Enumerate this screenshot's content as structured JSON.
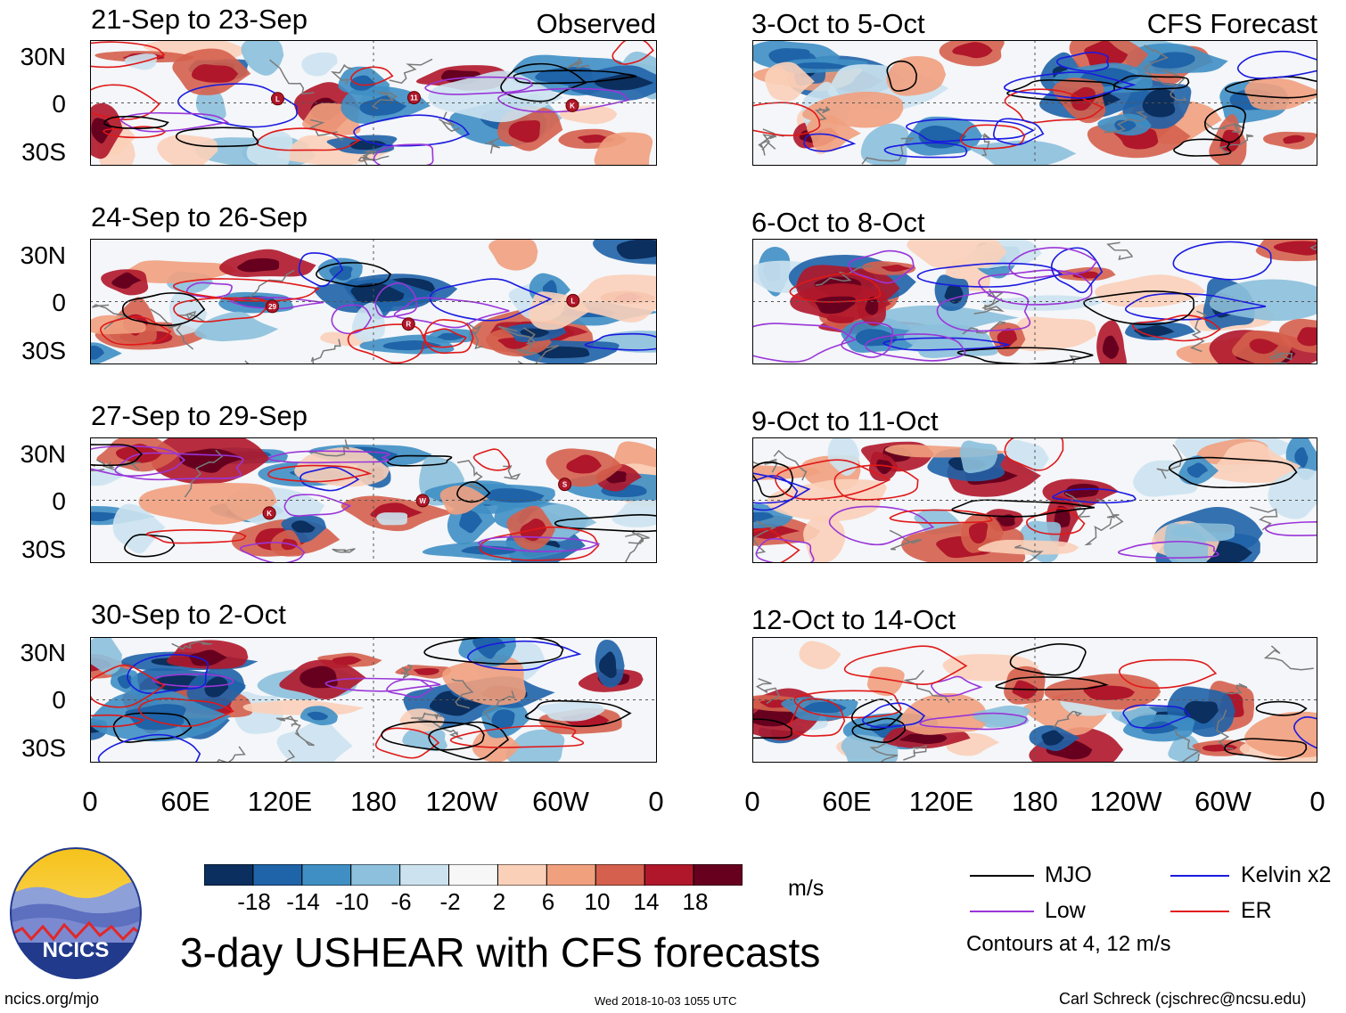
{
  "panels": {
    "observed": [
      {
        "title": "21-Sep to 23-Sep",
        "tag": "Observed"
      },
      {
        "title": "24-Sep to 26-Sep",
        "tag": ""
      },
      {
        "title": "27-Sep to 29-Sep",
        "tag": ""
      },
      {
        "title": "30-Sep to 2-Oct",
        "tag": ""
      }
    ],
    "forecast": [
      {
        "title": "3-Oct to 5-Oct",
        "tag": "CFS Forecast"
      },
      {
        "title": "6-Oct to 8-Oct",
        "tag": ""
      },
      {
        "title": "9-Oct to 11-Oct",
        "tag": ""
      },
      {
        "title": "12-Oct to 14-Oct",
        "tag": ""
      }
    ]
  },
  "axes": {
    "lat_labels": [
      "30N",
      "0",
      "30S"
    ],
    "lon_labels": [
      "0",
      "60E",
      "120E",
      "180",
      "120W",
      "60W",
      "0"
    ]
  },
  "storm_markers": [
    {
      "panel": 0,
      "label": "L"
    },
    {
      "panel": 0,
      "label": "11"
    },
    {
      "panel": 0,
      "label": "K"
    },
    {
      "panel": 1,
      "label": "29"
    },
    {
      "panel": 1,
      "label": "R"
    },
    {
      "panel": 1,
      "label": "L"
    },
    {
      "panel": 2,
      "label": "K"
    },
    {
      "panel": 2,
      "label": "W"
    },
    {
      "panel": 2,
      "label": "S"
    }
  ],
  "colorbar": {
    "colors": [
      "#0b2f5e",
      "#1f63a8",
      "#3f8fc4",
      "#8cc0dc",
      "#cce3ef",
      "#f7f7f7",
      "#fbd0b9",
      "#f1a07e",
      "#d5604d",
      "#b0172a",
      "#67001f"
    ],
    "tick_labels": [
      "-18",
      "-14",
      "-10",
      "-6",
      "-2",
      "2",
      "6",
      "10",
      "14",
      "18"
    ],
    "units": "m/s"
  },
  "legend": {
    "items": [
      {
        "label": "MJO",
        "color": "#000000"
      },
      {
        "label": "Kelvin x2",
        "color": "#1a1ae0"
      },
      {
        "label": "Low",
        "color": "#9a35d8"
      },
      {
        "label": "ER",
        "color": "#e01818"
      }
    ],
    "note": "Contours at 4, 12 m/s"
  },
  "logo_text": "NCICS",
  "main_title": "3-day USHEAR with CFS forecasts",
  "footer": {
    "left": "ncics.org/mjo",
    "center": "Wed 2018-10-03 1055 UTC",
    "right": "Carl Schreck (cjschrec@ncsu.edu)"
  }
}
